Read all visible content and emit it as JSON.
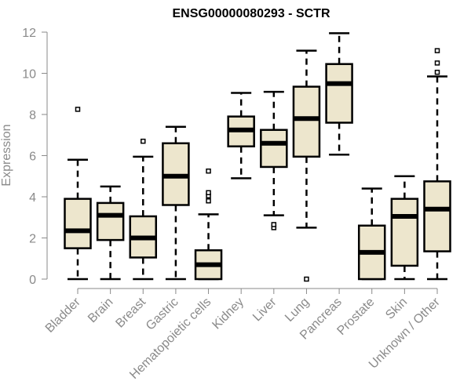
{
  "chart_data": {
    "type": "boxplot",
    "title": "ENSG00000080293 - SCTR",
    "xlabel": "",
    "ylabel": "Expression",
    "ylim": [
      0,
      12
    ],
    "yticks": [
      0,
      2,
      4,
      6,
      8,
      10,
      12
    ],
    "grid": false,
    "box_fill": "#ede6cd",
    "box_stroke": "#000000",
    "axis_color": "#8a8a8a",
    "categories": [
      "Bladder",
      "Brain",
      "Breast",
      "Gastric",
      "Hematopoietic cells",
      "Kidney",
      "Liver",
      "Lung",
      "Pancreas",
      "Prostate",
      "Skin",
      "Unknown / Other"
    ],
    "boxes": [
      {
        "name": "Bladder",
        "whisker_low": 0,
        "q1": 1.5,
        "median": 2.35,
        "q3": 3.9,
        "whisker_high": 5.8,
        "outliers": [
          8.25
        ]
      },
      {
        "name": "Brain",
        "whisker_low": 0,
        "q1": 1.9,
        "median": 3.1,
        "q3": 3.7,
        "whisker_high": 4.5,
        "outliers": []
      },
      {
        "name": "Breast",
        "whisker_low": 0,
        "q1": 1.05,
        "median": 2.0,
        "q3": 3.05,
        "whisker_high": 5.95,
        "outliers": [
          6.7
        ]
      },
      {
        "name": "Gastric",
        "whisker_low": 0,
        "q1": 3.6,
        "median": 5.0,
        "q3": 6.6,
        "whisker_high": 7.4,
        "outliers": []
      },
      {
        "name": "Hematopoietic cells",
        "whisker_low": 0,
        "q1": 0,
        "median": 0.7,
        "q3": 1.4,
        "whisker_high": 3.15,
        "outliers": [
          3.8,
          4.05,
          4.2,
          5.25
        ]
      },
      {
        "name": "Kidney",
        "whisker_low": 4.9,
        "q1": 6.45,
        "median": 7.25,
        "q3": 7.9,
        "whisker_high": 9.05,
        "outliers": []
      },
      {
        "name": "Liver",
        "whisker_low": 3.1,
        "q1": 5.45,
        "median": 6.6,
        "q3": 7.25,
        "whisker_high": 9.1,
        "outliers": [
          2.5,
          2.65
        ]
      },
      {
        "name": "Lung",
        "whisker_low": 2.5,
        "q1": 5.95,
        "median": 7.8,
        "q3": 9.35,
        "whisker_high": 11.1,
        "outliers": [
          0
        ]
      },
      {
        "name": "Pancreas",
        "whisker_low": 6.05,
        "q1": 7.6,
        "median": 9.5,
        "q3": 10.45,
        "whisker_high": 11.95,
        "outliers": []
      },
      {
        "name": "Prostate",
        "whisker_low": 0,
        "q1": 0,
        "median": 1.3,
        "q3": 2.6,
        "whisker_high": 4.4,
        "outliers": []
      },
      {
        "name": "Skin",
        "whisker_low": 0,
        "q1": 0.65,
        "median": 3.05,
        "q3": 3.9,
        "whisker_high": 5.0,
        "outliers": []
      },
      {
        "name": "Unknown / Other",
        "whisker_low": 0,
        "q1": 1.35,
        "median": 3.4,
        "q3": 4.75,
        "whisker_high": 9.85,
        "outliers": [
          10.05,
          10.5,
          11.1
        ]
      }
    ]
  }
}
